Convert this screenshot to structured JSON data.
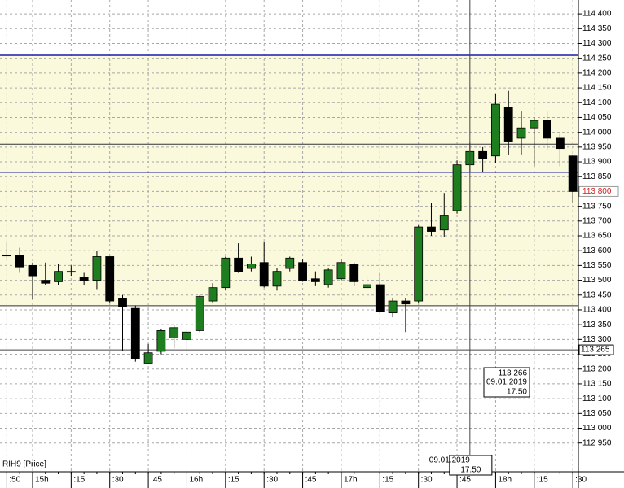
{
  "chart_data": {
    "type": "candlestick",
    "instrument_label": "RIH9 [Price]",
    "categories": [
      ":50",
      null,
      "15h",
      null,
      null,
      ":15",
      null,
      null,
      ":30",
      null,
      null,
      ":45",
      null,
      null,
      "16h",
      null,
      null,
      ":15",
      null,
      null,
      ":30",
      null,
      null,
      ":45",
      null,
      null,
      "17h",
      null,
      null,
      ":15",
      null,
      null,
      ":30",
      null,
      null,
      ":45",
      null,
      null,
      "18h",
      null,
      null,
      ":15",
      null,
      null,
      ":30"
    ],
    "open": [
      113585,
      113585,
      113550,
      113500,
      113495,
      113530,
      113510,
      113500,
      113580,
      113440,
      113405,
      113220,
      113260,
      113305,
      113300,
      113330,
      113430,
      113475,
      113575,
      113540,
      113560,
      113480,
      113540,
      113560,
      113505,
      113485,
      113505,
      113555,
      113475,
      113485,
      113390,
      113430,
      113430,
      113680,
      113670,
      113735,
      113890,
      113935,
      113920,
      114085,
      113980,
      114015,
      114040,
      113980,
      113920
    ],
    "high": [
      113630,
      113610,
      113560,
      113560,
      113555,
      113550,
      113525,
      113600,
      113580,
      113450,
      113415,
      113285,
      113335,
      113350,
      113335,
      113450,
      113490,
      113580,
      113625,
      113580,
      113630,
      113540,
      113580,
      113570,
      113530,
      113540,
      113570,
      113560,
      113515,
      113525,
      113440,
      113440,
      113685,
      113760,
      113795,
      113905,
      113965,
      113950,
      114130,
      114140,
      114070,
      114050,
      114070,
      113995,
      113925
    ],
    "low": [
      113570,
      113525,
      113435,
      113485,
      113485,
      113515,
      113485,
      113470,
      113425,
      113260,
      113225,
      113220,
      113250,
      113270,
      113265,
      113325,
      113425,
      113465,
      113525,
      113530,
      113475,
      113465,
      113530,
      113495,
      113480,
      113475,
      113500,
      113480,
      113470,
      113390,
      113375,
      113325,
      113425,
      113650,
      113645,
      113725,
      113865,
      113865,
      113895,
      113925,
      113925,
      113885,
      113940,
      113885,
      113760
    ],
    "close": [
      113585,
      113545,
      113515,
      113490,
      113530,
      113530,
      113500,
      113580,
      113430,
      113410,
      113235,
      113255,
      113330,
      113340,
      113325,
      113445,
      113475,
      113575,
      113530,
      113555,
      113480,
      113530,
      113575,
      113500,
      113495,
      113535,
      113560,
      113495,
      113485,
      113395,
      113430,
      113420,
      113680,
      113665,
      113720,
      113890,
      113935,
      113910,
      114095,
      113970,
      114015,
      114040,
      113980,
      113945,
      113800
    ],
    "up_color": "#1e7d1e",
    "down_color": "#000000",
    "ylim": [
      112853,
      114447
    ],
    "yticks": [
      {
        "value": 112950,
        "label": "112 950"
      },
      {
        "value": 113000,
        "label": "113 000"
      },
      {
        "value": 113050,
        "label": "113 050"
      },
      {
        "value": 113100,
        "label": "113 100"
      },
      {
        "value": 113150,
        "label": "113 150"
      },
      {
        "value": 113200,
        "label": "113 200"
      },
      {
        "value": 113250,
        "label": "113 250"
      },
      {
        "value": 113300,
        "label": "113 300"
      },
      {
        "value": 113350,
        "label": "113 350"
      },
      {
        "value": 113400,
        "label": "113 400"
      },
      {
        "value": 113450,
        "label": "113 450"
      },
      {
        "value": 113500,
        "label": "113 500"
      },
      {
        "value": 113550,
        "label": "113 550"
      },
      {
        "value": 113600,
        "label": "113 600"
      },
      {
        "value": 113650,
        "label": "113 650"
      },
      {
        "value": 113700,
        "label": "113 700"
      },
      {
        "value": 113750,
        "label": "113 750"
      },
      {
        "value": 113800,
        "label": "113 800"
      },
      {
        "value": 113850,
        "label": "113 850"
      },
      {
        "value": 113900,
        "label": "113 900"
      },
      {
        "value": 113950,
        "label": "113 950"
      },
      {
        "value": 114000,
        "label": "114 000"
      },
      {
        "value": 114050,
        "label": "114 050"
      },
      {
        "value": 114100,
        "label": "114 100"
      },
      {
        "value": 114150,
        "label": "114 150"
      },
      {
        "value": 114200,
        "label": "114 200"
      },
      {
        "value": 114250,
        "label": "114 250"
      },
      {
        "value": 114300,
        "label": "114 300"
      },
      {
        "value": 114350,
        "label": "114 350"
      },
      {
        "value": 114400,
        "label": "114 400"
      }
    ],
    "grid": true,
    "zone": {
      "from": 113414,
      "to": 114260,
      "color": "#fbf9dc"
    },
    "zone_lines": [
      113960,
      113414
    ],
    "levels": [
      {
        "value": 114260,
        "color": "#1c1ca8"
      },
      {
        "value": 113865,
        "color": "#1c1ca8"
      }
    ],
    "last_price": {
      "value": 113800,
      "label": "113 800",
      "color": "#d02020"
    },
    "crosshair": {
      "index": 36,
      "date": "09.01.2019",
      "time": "17:50",
      "tooltip": {
        "value": 113266,
        "label": "113 266"
      },
      "axis": {
        "value": 113265,
        "label": "113 265"
      }
    }
  }
}
